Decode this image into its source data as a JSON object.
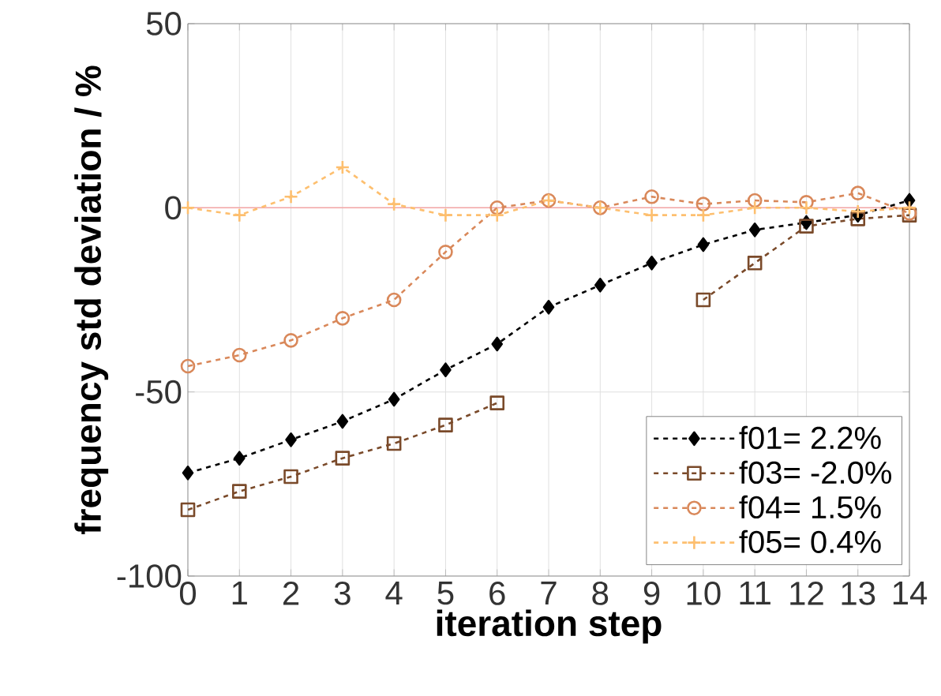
{
  "chart_data": {
    "type": "line",
    "xlabel": "iteration step",
    "ylabel": "frequency std deviation / %",
    "x": [
      0,
      1,
      2,
      3,
      4,
      5,
      6,
      7,
      8,
      9,
      10,
      11,
      12,
      13,
      14
    ],
    "xlim": [
      0,
      14
    ],
    "xticks": [
      0,
      1,
      2,
      3,
      4,
      5,
      6,
      7,
      8,
      9,
      10,
      11,
      12,
      13,
      14
    ],
    "ylim": [
      -100,
      50
    ],
    "yticks": [
      -100,
      -50,
      0,
      50
    ],
    "grid": true,
    "legend": "bottom right",
    "line_style": "dashed",
    "ref_lines": [
      {
        "axis": "y",
        "value": 0,
        "color": "#f4a6a6"
      }
    ],
    "series": [
      {
        "name": "f01=  2.2%",
        "color": "#000000",
        "marker": "diamond",
        "values": [
          -72,
          -68,
          -63,
          -58,
          -52,
          -44,
          -37,
          -27,
          -21,
          -15,
          -10,
          -6,
          -4,
          -2,
          2
        ]
      },
      {
        "name": "f03= -2.0%",
        "color": "#7a4a2a",
        "marker": "square",
        "values": [
          -82,
          -77,
          -73,
          -68,
          -64,
          -59,
          -53,
          null,
          null,
          null,
          -25,
          -15,
          -5,
          -3,
          -2
        ]
      },
      {
        "name": "f04=  1.5%",
        "color": "#d9885a",
        "marker": "circle",
        "values": [
          -43,
          -40,
          -36,
          -30,
          -25,
          -12,
          0,
          2,
          0,
          3,
          1,
          2,
          1.5,
          4,
          -1.5
        ]
      },
      {
        "name": "f05=  0.4%",
        "color": "#fdbf6f",
        "marker": "cross",
        "values": [
          0,
          -2,
          3,
          11,
          1,
          -2,
          -2,
          2,
          0,
          -2,
          -2,
          0,
          0,
          -1,
          0
        ]
      }
    ]
  }
}
